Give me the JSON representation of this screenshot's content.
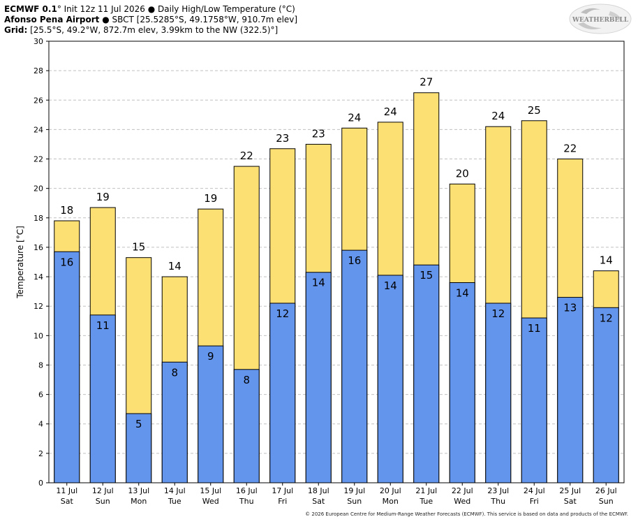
{
  "header": {
    "line1_model": "ECMWF 0.1",
    "line1_rest": "° Init 12z 11 Jul 2026 ● Daily High/Low Temperature (°C)",
    "line2_station": "Afonso Pena Airport",
    "line2_rest": " ● SBCT [25.5285°S, 49.1758°W, 910.7m elev]",
    "line3_label": "Grid:",
    "line3_rest": " [25.5°S, 49.2°W, 872.7m elev, 3.99km to the NW (322.5)°]"
  },
  "logo": {
    "text": "WEATHERBELL",
    "icon": "weatherbell-swirl-icon"
  },
  "footer": {
    "text": "© 2026 European Centre for Medium-Range Weather Forecasts (ECMWF). This service is based on data and products of the ECMWF."
  },
  "colors": {
    "high": "#fde074",
    "low": "#6495ed",
    "grid": "#c0c0c0"
  },
  "chart_data": {
    "type": "bar",
    "ylabel": "Temperature [°C]",
    "ylim": [
      0,
      30
    ],
    "yticks": [
      0,
      2,
      4,
      6,
      8,
      10,
      12,
      14,
      16,
      18,
      20,
      22,
      24,
      26,
      28,
      30
    ],
    "grid": "horizontal dashed",
    "categories": [
      {
        "date": "11 Jul",
        "day": "Sat"
      },
      {
        "date": "12 Jul",
        "day": "Sun"
      },
      {
        "date": "13 Jul",
        "day": "Mon"
      },
      {
        "date": "14 Jul",
        "day": "Tue"
      },
      {
        "date": "15 Jul",
        "day": "Wed"
      },
      {
        "date": "16 Jul",
        "day": "Thu"
      },
      {
        "date": "17 Jul",
        "day": "Fri"
      },
      {
        "date": "18 Jul",
        "day": "Sat"
      },
      {
        "date": "19 Jul",
        "day": "Sun"
      },
      {
        "date": "20 Jul",
        "day": "Mon"
      },
      {
        "date": "21 Jul",
        "day": "Tue"
      },
      {
        "date": "22 Jul",
        "day": "Wed"
      },
      {
        "date": "23 Jul",
        "day": "Thu"
      },
      {
        "date": "24 Jul",
        "day": "Fri"
      },
      {
        "date": "25 Jul",
        "day": "Sat"
      },
      {
        "date": "26 Jul",
        "day": "Sun"
      }
    ],
    "series": [
      {
        "values": [
          17.8,
          18.7,
          15.3,
          14.0,
          18.6,
          21.5,
          22.7,
          23.0,
          24.1,
          24.5,
          26.5,
          20.3,
          24.2,
          24.6,
          22.0,
          14.4
        ],
        "labels": [
          "18",
          "19",
          "15",
          "14",
          "19",
          "22",
          "23",
          "23",
          "24",
          "24",
          "27",
          "20",
          "24",
          "25",
          "22",
          "14"
        ]
      },
      {
        "values": [
          15.7,
          11.4,
          4.7,
          8.2,
          9.3,
          7.7,
          12.2,
          14.3,
          15.8,
          14.1,
          14.8,
          13.6,
          12.2,
          11.2,
          12.6,
          11.9
        ],
        "labels": [
          "16",
          "11",
          "5",
          "8",
          "9",
          "8",
          "12",
          "14",
          "16",
          "14",
          "15",
          "14",
          "12",
          "11",
          "13",
          "12"
        ]
      }
    ]
  }
}
